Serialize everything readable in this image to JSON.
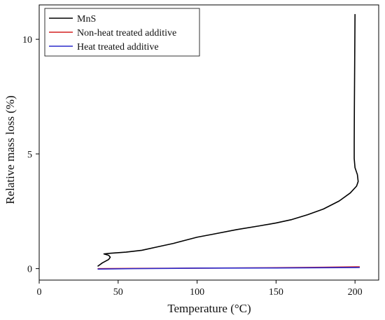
{
  "chart_data": {
    "type": "line",
    "xlabel": "Temperature (°C)",
    "ylabel": "Relative mass loss (%)",
    "xlim": [
      0,
      215
    ],
    "ylim": [
      -0.5,
      11.5
    ],
    "xticks": [
      0,
      50,
      100,
      150,
      200
    ],
    "yticks": [
      0,
      5,
      10
    ],
    "legend_position": "top-left",
    "grid": false,
    "series": [
      {
        "name": "MnS",
        "color": "#000000",
        "points": [
          [
            37,
            0.1
          ],
          [
            40,
            0.25
          ],
          [
            44,
            0.4
          ],
          [
            45,
            0.5
          ],
          [
            44,
            0.58
          ],
          [
            41,
            0.64
          ],
          [
            45,
            0.67
          ],
          [
            55,
            0.72
          ],
          [
            65,
            0.8
          ],
          [
            75,
            0.95
          ],
          [
            85,
            1.1
          ],
          [
            100,
            1.37
          ],
          [
            110,
            1.5
          ],
          [
            125,
            1.7
          ],
          [
            140,
            1.87
          ],
          [
            150,
            1.99
          ],
          [
            160,
            2.14
          ],
          [
            170,
            2.35
          ],
          [
            180,
            2.6
          ],
          [
            190,
            2.95
          ],
          [
            197,
            3.3
          ],
          [
            201,
            3.6
          ],
          [
            202,
            3.8
          ],
          [
            201.5,
            4.1
          ],
          [
            200,
            4.4
          ],
          [
            199.5,
            4.8
          ],
          [
            199.5,
            5.5
          ],
          [
            199.6,
            7.0
          ],
          [
            199.8,
            9.0
          ],
          [
            200,
            11.1
          ]
        ]
      },
      {
        "name": "Non-heat treated additive",
        "color": "#d42020",
        "points": [
          [
            37,
            0.0
          ],
          [
            60,
            0.01
          ],
          [
            100,
            0.02
          ],
          [
            150,
            0.04
          ],
          [
            180,
            0.06
          ],
          [
            203,
            0.08
          ]
        ]
      },
      {
        "name": "Heat treated additive",
        "color": "#2a2acc",
        "points": [
          [
            37,
            -0.02
          ],
          [
            60,
            0.0
          ],
          [
            100,
            0.02
          ],
          [
            150,
            0.03
          ],
          [
            180,
            0.04
          ],
          [
            203,
            0.05
          ]
        ]
      }
    ]
  }
}
